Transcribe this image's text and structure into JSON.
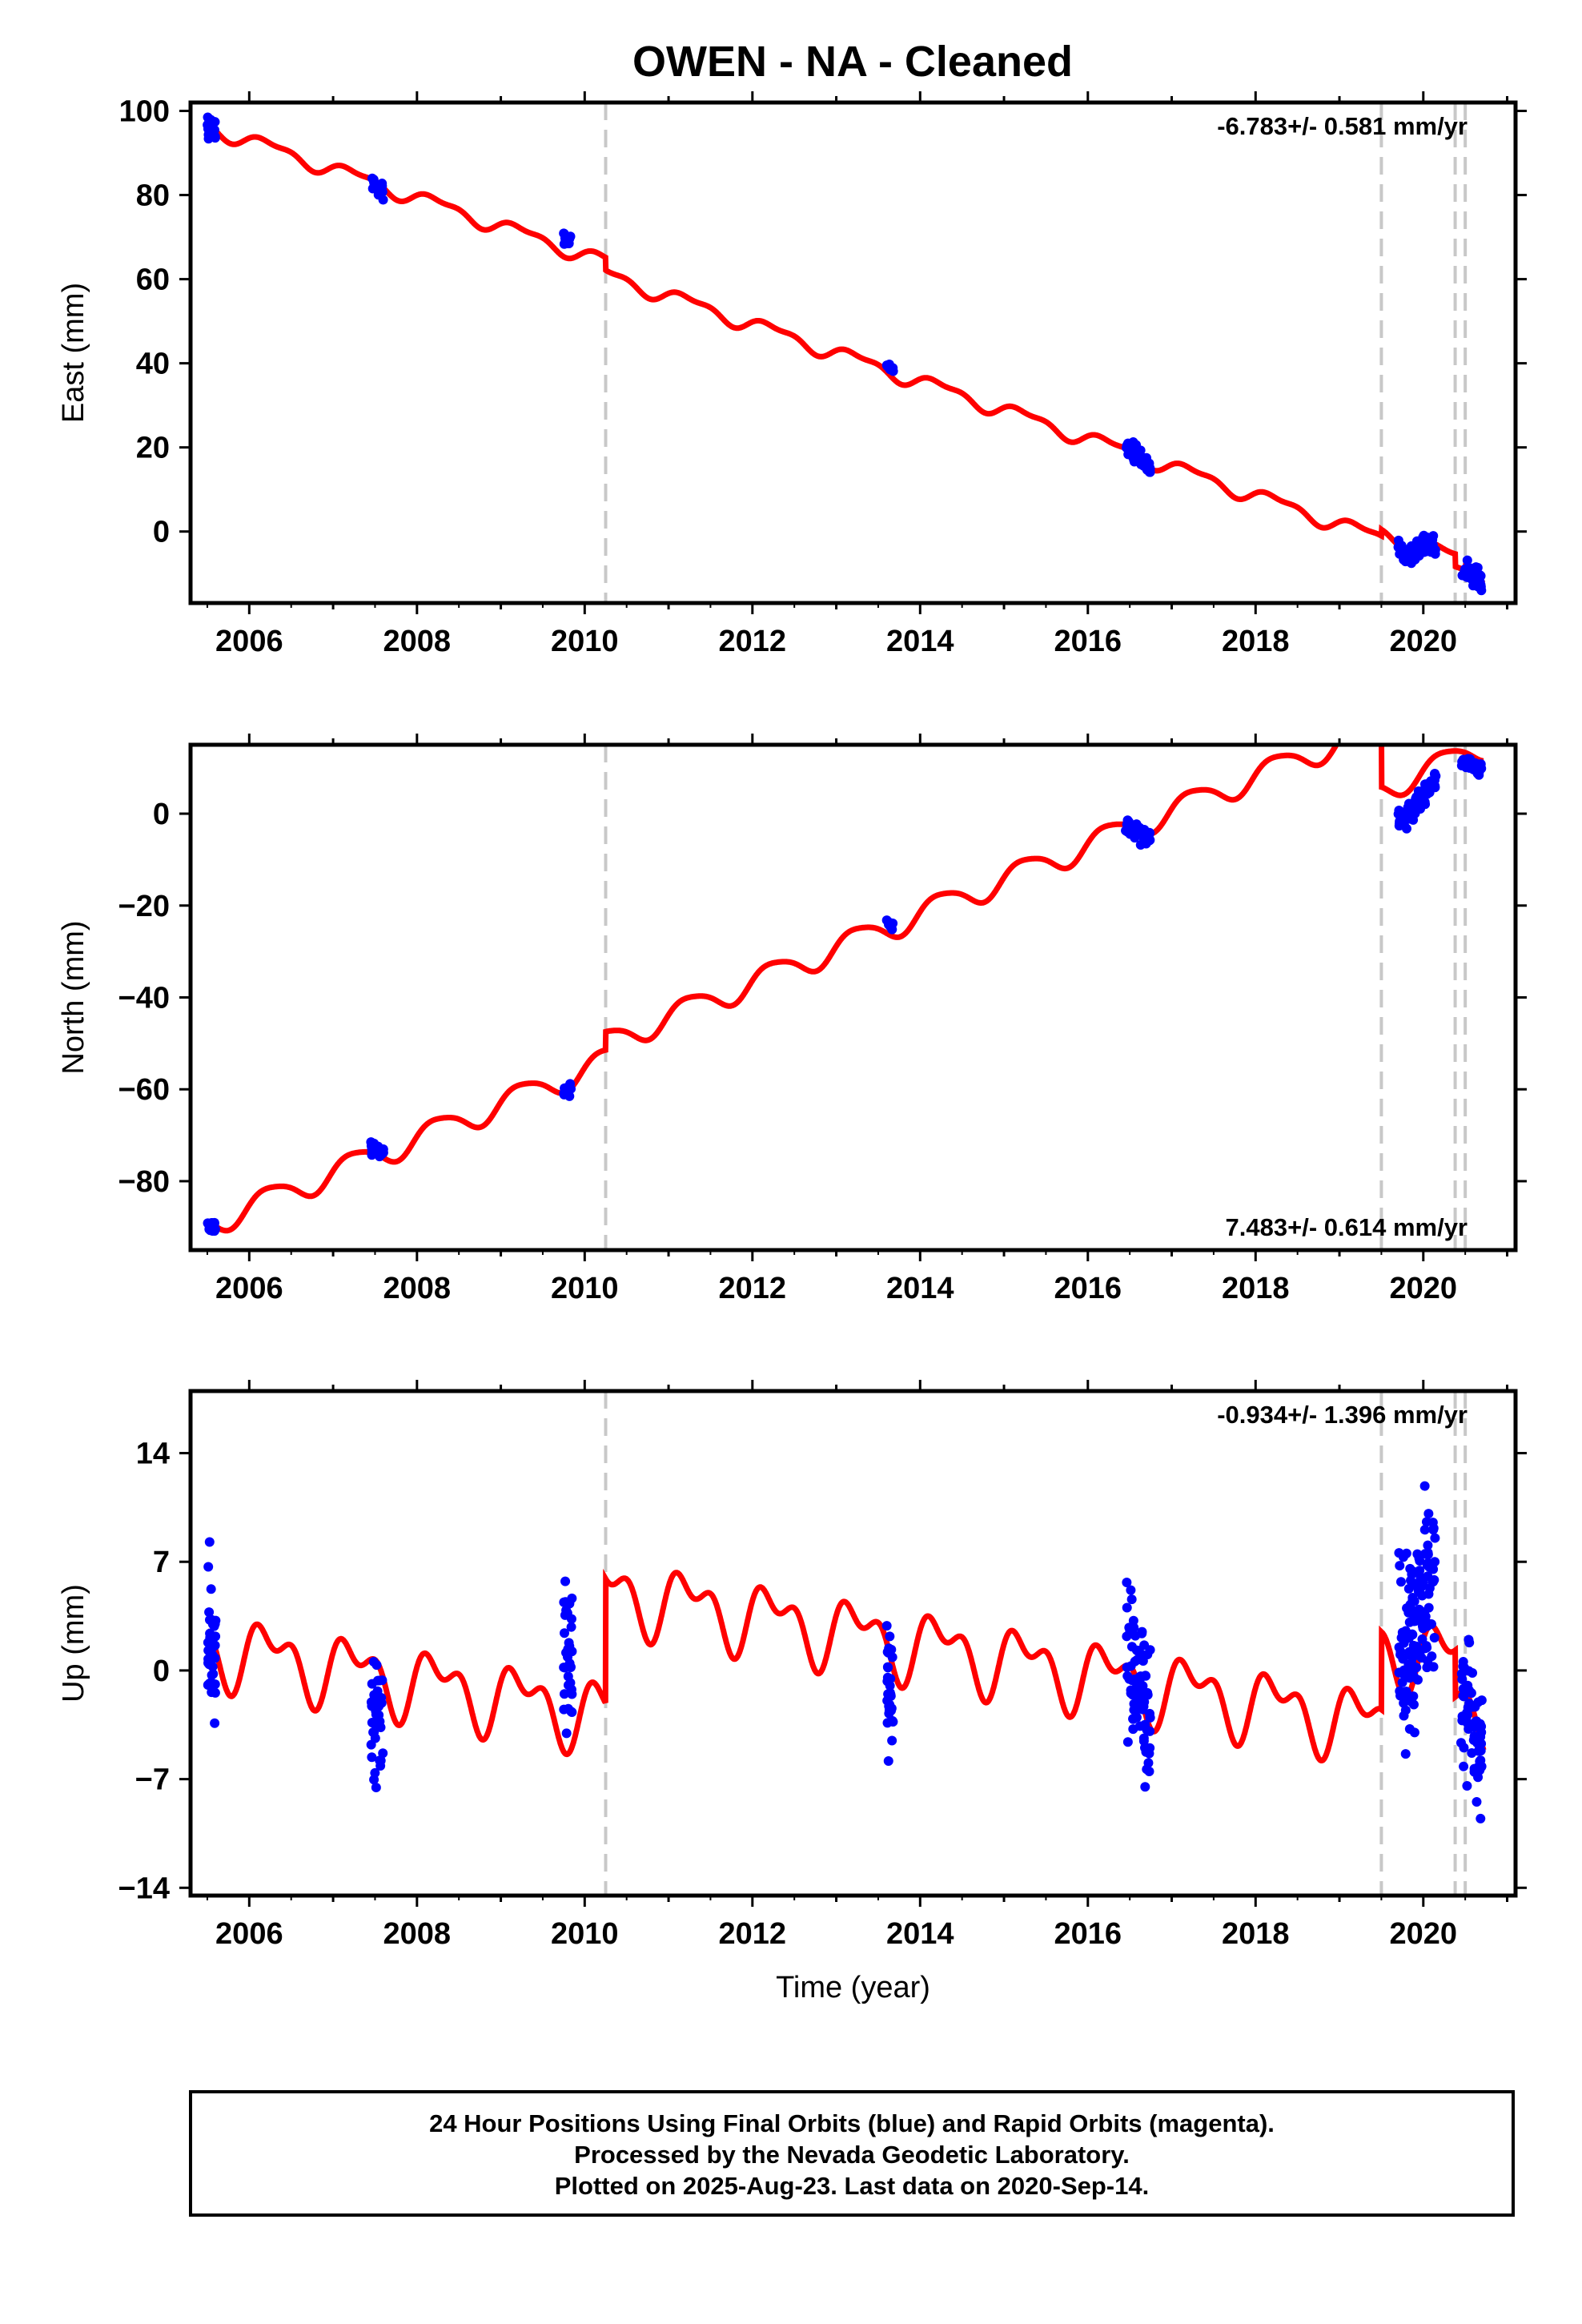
{
  "title": "OWEN  - NA - Cleaned",
  "colors": {
    "final_orbits": "#0000ff",
    "model_fit": "#ff0000",
    "breaks": "#c8c8c8",
    "frame": "#000000"
  },
  "chart_data": [
    {
      "type": "scatter",
      "component": "East",
      "ylabel": "East (mm)",
      "xlabel": "",
      "xlim": [
        2005.3,
        2021.1
      ],
      "ylim": [
        -17,
        102
      ],
      "yticks": [
        0,
        20,
        40,
        60,
        80,
        100
      ],
      "ytick_labels": [
        "0",
        "20",
        "40",
        "60",
        "80",
        "100"
      ],
      "xticks": [
        2006,
        2008,
        2010,
        2012,
        2014,
        2016,
        2018,
        2020
      ],
      "xtick_labels": [
        "2006",
        "2008",
        "2010",
        "2012",
        "2014",
        "2016",
        "2018",
        "2020"
      ],
      "rate_label": "-6.783+/- 0.581 mm/yr",
      "rate_position": "top-right",
      "break_epochs": [
        2010.25,
        2019.5,
        2020.38,
        2020.5
      ],
      "clusters": [
        {
          "start": 2005.5,
          "end": 2005.6,
          "center": 95.5,
          "spread": 3.2,
          "count": 22
        },
        {
          "start": 2007.45,
          "end": 2007.6,
          "center": 82,
          "spread": 2.6,
          "count": 20
        },
        {
          "start": 2009.75,
          "end": 2009.85,
          "center": 69.5,
          "spread": 2.0,
          "count": 12
        },
        {
          "start": 2013.6,
          "end": 2013.68,
          "center": 39,
          "spread": 1.8,
          "count": 10
        },
        {
          "start": 2016.45,
          "end": 2016.75,
          "center": 18,
          "spread": 2.6,
          "count": 45
        },
        {
          "start": 2019.7,
          "end": 2020.15,
          "center": -4.5,
          "spread": 3.5,
          "count": 80
        },
        {
          "start": 2020.45,
          "end": 2020.7,
          "center": -10,
          "spread": 2.6,
          "count": 40
        }
      ],
      "model": {
        "rate": -6.783,
        "ref_epoch": 2005.55,
        "ref_value": 96,
        "annual_amp": 1.6,
        "semiannual_amp": 0.7,
        "offsets": [
          {
            "epoch": 2010.25,
            "jump": -3
          },
          {
            "epoch": 2019.5,
            "jump": 1.5
          },
          {
            "epoch": 2020.38,
            "jump": -3
          },
          {
            "epoch": 2020.5,
            "jump": 1
          }
        ]
      }
    },
    {
      "type": "scatter",
      "component": "North",
      "ylabel": "North (mm)",
      "xlabel": "",
      "xlim": [
        2005.3,
        2021.1
      ],
      "ylim": [
        -95,
        15
      ],
      "yticks": [
        -80,
        -60,
        -40,
        -20,
        0
      ],
      "ytick_labels": [
        "−80",
        "−60",
        "−40",
        "−20",
        "0"
      ],
      "xticks": [
        2006,
        2008,
        2010,
        2012,
        2014,
        2016,
        2018,
        2020
      ],
      "xtick_labels": [
        "2006",
        "2008",
        "2010",
        "2012",
        "2014",
        "2016",
        "2018",
        "2020"
      ],
      "rate_label": "7.483+/- 0.614 mm/yr",
      "rate_position": "bottom-right",
      "break_epochs": [
        2010.25,
        2019.5,
        2020.38,
        2020.5
      ],
      "clusters": [
        {
          "start": 2005.5,
          "end": 2005.6,
          "center": -90,
          "spread": 2.0,
          "count": 18
        },
        {
          "start": 2007.45,
          "end": 2007.6,
          "center": -73,
          "spread": 2.0,
          "count": 20
        },
        {
          "start": 2009.75,
          "end": 2009.85,
          "center": -60,
          "spread": 2.0,
          "count": 12
        },
        {
          "start": 2013.6,
          "end": 2013.68,
          "center": -24,
          "spread": 1.8,
          "count": 10
        },
        {
          "start": 2016.45,
          "end": 2016.75,
          "center": -4,
          "spread": 2.4,
          "count": 45
        },
        {
          "start": 2019.7,
          "end": 2020.15,
          "center": 2,
          "spread": 2.6,
          "count": 80
        },
        {
          "start": 2020.45,
          "end": 2020.7,
          "center": 10.5,
          "spread": 2.0,
          "count": 40
        }
      ],
      "model": {
        "rate": 7.483,
        "ref_epoch": 2005.55,
        "ref_value": -89,
        "annual_amp": 2.8,
        "semiannual_amp": 0.5,
        "offsets": [
          {
            "epoch": 2010.25,
            "jump": 4
          },
          {
            "epoch": 2019.5,
            "jump": -14
          },
          {
            "epoch": 2020.38,
            "jump": 0
          },
          {
            "epoch": 2020.5,
            "jump": 0
          }
        ]
      }
    },
    {
      "type": "scatter",
      "component": "Up",
      "ylabel": "Up (mm)",
      "xlabel": "Time (year)",
      "xlim": [
        2005.3,
        2021.1
      ],
      "ylim": [
        -14.5,
        18
      ],
      "yticks": [
        -14,
        -7,
        0,
        7,
        14
      ],
      "ytick_labels": [
        "−14",
        "−7",
        "0",
        "7",
        "14"
      ],
      "xticks": [
        2006,
        2008,
        2010,
        2012,
        2014,
        2016,
        2018,
        2020
      ],
      "xtick_labels": [
        "2006",
        "2008",
        "2010",
        "2012",
        "2014",
        "2016",
        "2018",
        "2020"
      ],
      "rate_label": "-0.934+/- 1.396 mm/yr",
      "rate_position": "top-right",
      "break_epochs": [
        2010.25,
        2019.5,
        2020.38,
        2020.5
      ],
      "clusters": [
        {
          "start": 2005.5,
          "end": 2005.6,
          "center": 1.5,
          "spread": 6.5,
          "count": 40
        },
        {
          "start": 2007.45,
          "end": 2007.6,
          "center": -3,
          "spread": 5.0,
          "count": 40
        },
        {
          "start": 2009.75,
          "end": 2009.85,
          "center": 0,
          "spread": 6.0,
          "count": 35
        },
        {
          "start": 2013.6,
          "end": 2013.68,
          "center": -1,
          "spread": 5.0,
          "count": 30
        },
        {
          "start": 2016.45,
          "end": 2016.75,
          "center": -1,
          "spread": 6.0,
          "count": 80
        },
        {
          "start": 2019.7,
          "end": 2020.15,
          "center": 3,
          "spread": 6.5,
          "count": 140
        },
        {
          "start": 2020.45,
          "end": 2020.7,
          "center": -3,
          "spread": 5.0,
          "count": 70
        }
      ],
      "model": {
        "rate": -0.934,
        "ref_epoch": 2005.55,
        "ref_value": 1.5,
        "annual_amp": 1.8,
        "semiannual_amp": 1.2,
        "offsets": [
          {
            "epoch": 2010.25,
            "jump": 8
          },
          {
            "epoch": 2019.5,
            "jump": 5
          },
          {
            "epoch": 2020.38,
            "jump": -3
          },
          {
            "epoch": 2020.5,
            "jump": 0
          }
        ]
      }
    }
  ],
  "footer": {
    "line1": "24 Hour Positions Using Final Orbits (blue) and Rapid Orbits (magenta).",
    "line2": "Processed by the Nevada Geodetic Laboratory.",
    "line3": "Plotted on 2025-Aug-23. Last data on 2020-Sep-14."
  }
}
